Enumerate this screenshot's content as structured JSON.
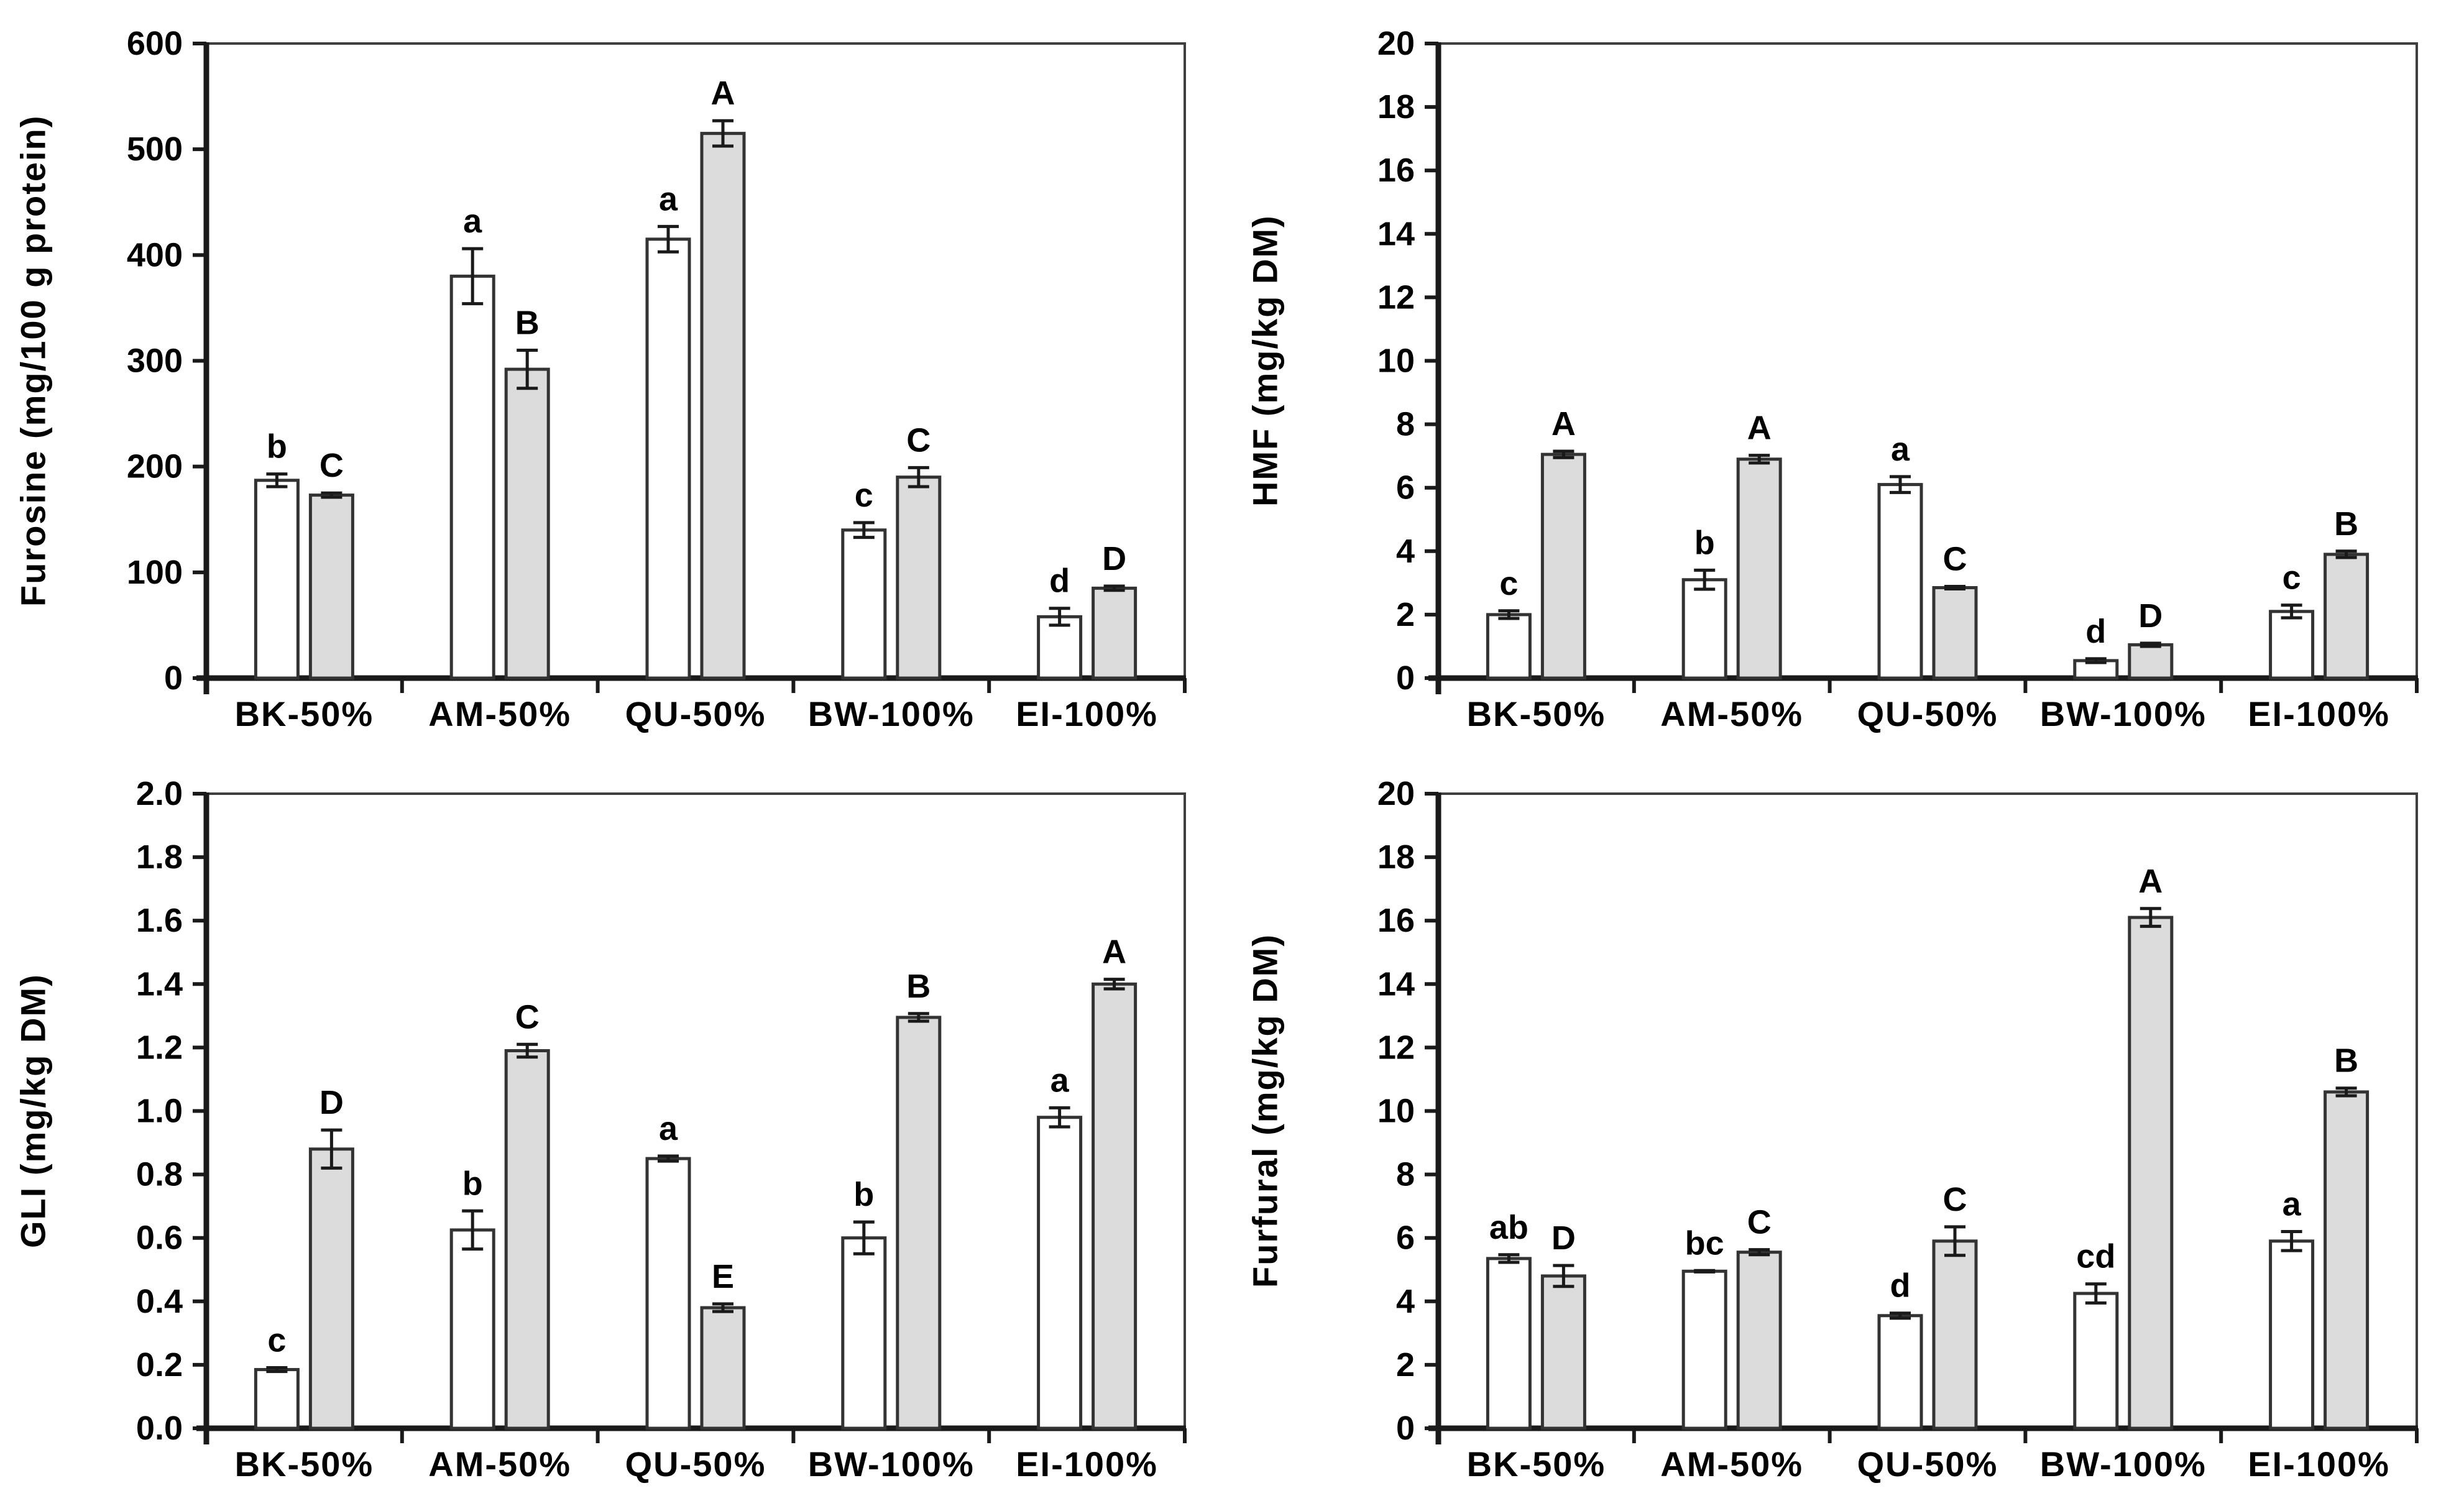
{
  "figure": {
    "background": "#ffffff",
    "description": "Four bar charts comparing Maillard reaction markers across five bread formulations, each with an untreated (white) and treated (gray) bar, error bars, and significance letters"
  },
  "style": {
    "bar_fill_white": "#ffffff",
    "bar_fill_gray": "#dcdcdc",
    "bar_stroke": "#333333",
    "axis_color": "#1a1a1a",
    "frame_color": "#3f3f3f",
    "error_color": "#1a1a1a",
    "text_color": "#000000"
  },
  "categories": [
    "BK-50%",
    "AM-50%",
    "QU-50%",
    "BW-100%",
    "EI-100%"
  ],
  "chart_data": [
    {
      "type": "bar",
      "position": "top-left",
      "ylabel": "Furosine (mg/100 g protein)",
      "xlabel": "",
      "ylim": [
        0,
        600
      ],
      "ytick_step": 100,
      "ytick_decimals": 0,
      "grid": false,
      "legend": "none",
      "categories": [
        "BK-50%",
        "AM-50%",
        "QU-50%",
        "BW-100%",
        "EI-100%"
      ],
      "series": [
        {
          "name": "white-bar",
          "fill": "#ffffff",
          "values": [
            187,
            380,
            415,
            140,
            58
          ],
          "errors": [
            6,
            26,
            12,
            7,
            8
          ],
          "letters": [
            "b",
            "a",
            "a",
            "c",
            "d"
          ]
        },
        {
          "name": "gray-bar",
          "fill": "#dcdcdc",
          "values": [
            173,
            292,
            515,
            190,
            85
          ],
          "errors": [
            2,
            18,
            12,
            9,
            2
          ],
          "letters": [
            "C",
            "B",
            "A",
            "C",
            "D"
          ]
        }
      ]
    },
    {
      "type": "bar",
      "position": "top-right",
      "ylabel": "HMF (mg/kg DM)",
      "xlabel": "",
      "ylim": [
        0,
        20
      ],
      "ytick_step": 2,
      "ytick_decimals": 0,
      "grid": false,
      "legend": "none",
      "categories": [
        "BK-50%",
        "AM-50%",
        "QU-50%",
        "BW-100%",
        "EI-100%"
      ],
      "series": [
        {
          "name": "white-bar",
          "fill": "#ffffff",
          "values": [
            2.0,
            3.1,
            6.1,
            0.55,
            2.1
          ],
          "errors": [
            0.12,
            0.3,
            0.25,
            0.06,
            0.2
          ],
          "letters": [
            "c",
            "b",
            "a",
            "d",
            "c"
          ]
        },
        {
          "name": "gray-bar",
          "fill": "#dcdcdc",
          "values": [
            7.05,
            6.9,
            2.85,
            1.05,
            3.9
          ],
          "errors": [
            0.1,
            0.12,
            0.04,
            0.05,
            0.1
          ],
          "letters": [
            "A",
            "A",
            "C",
            "D",
            "B"
          ]
        }
      ]
    },
    {
      "type": "bar",
      "position": "bottom-left",
      "ylabel": "GLI (mg/kg DM)",
      "xlabel": "",
      "ylim": [
        0,
        2.0
      ],
      "ytick_step": 0.2,
      "ytick_decimals": 1,
      "grid": false,
      "legend": "none",
      "categories": [
        "BK-50%",
        "AM-50%",
        "QU-50%",
        "BW-100%",
        "EI-100%"
      ],
      "series": [
        {
          "name": "white-bar",
          "fill": "#ffffff",
          "values": [
            0.185,
            0.625,
            0.85,
            0.6,
            0.98
          ],
          "errors": [
            0.006,
            0.06,
            0.008,
            0.05,
            0.03
          ],
          "letters": [
            "c",
            "b",
            "a",
            "b",
            "a"
          ]
        },
        {
          "name": "gray-bar",
          "fill": "#dcdcdc",
          "values": [
            0.88,
            1.19,
            0.38,
            1.295,
            1.4
          ],
          "errors": [
            0.06,
            0.02,
            0.012,
            0.012,
            0.015
          ],
          "letters": [
            "D",
            "C",
            "E",
            "B",
            "A"
          ]
        }
      ]
    },
    {
      "type": "bar",
      "position": "bottom-right",
      "ylabel": "Furfural (mg/kg DM)",
      "xlabel": "",
      "ylim": [
        0,
        20
      ],
      "ytick_step": 2,
      "ytick_decimals": 0,
      "grid": false,
      "legend": "none",
      "categories": [
        "BK-50%",
        "AM-50%",
        "QU-50%",
        "BW-100%",
        "EI-100%"
      ],
      "series": [
        {
          "name": "white-bar",
          "fill": "#ffffff",
          "values": [
            5.35,
            4.95,
            3.55,
            4.25,
            5.9
          ],
          "errors": [
            0.12,
            0.02,
            0.08,
            0.3,
            0.3
          ],
          "letters": [
            "ab",
            "bc",
            "d",
            "cd",
            "a"
          ]
        },
        {
          "name": "gray-bar",
          "fill": "#dcdcdc",
          "values": [
            4.8,
            5.55,
            5.9,
            16.1,
            10.6
          ],
          "errors": [
            0.33,
            0.08,
            0.45,
            0.28,
            0.12
          ],
          "letters": [
            "D",
            "C",
            "C",
            "A",
            "B"
          ]
        }
      ]
    }
  ]
}
